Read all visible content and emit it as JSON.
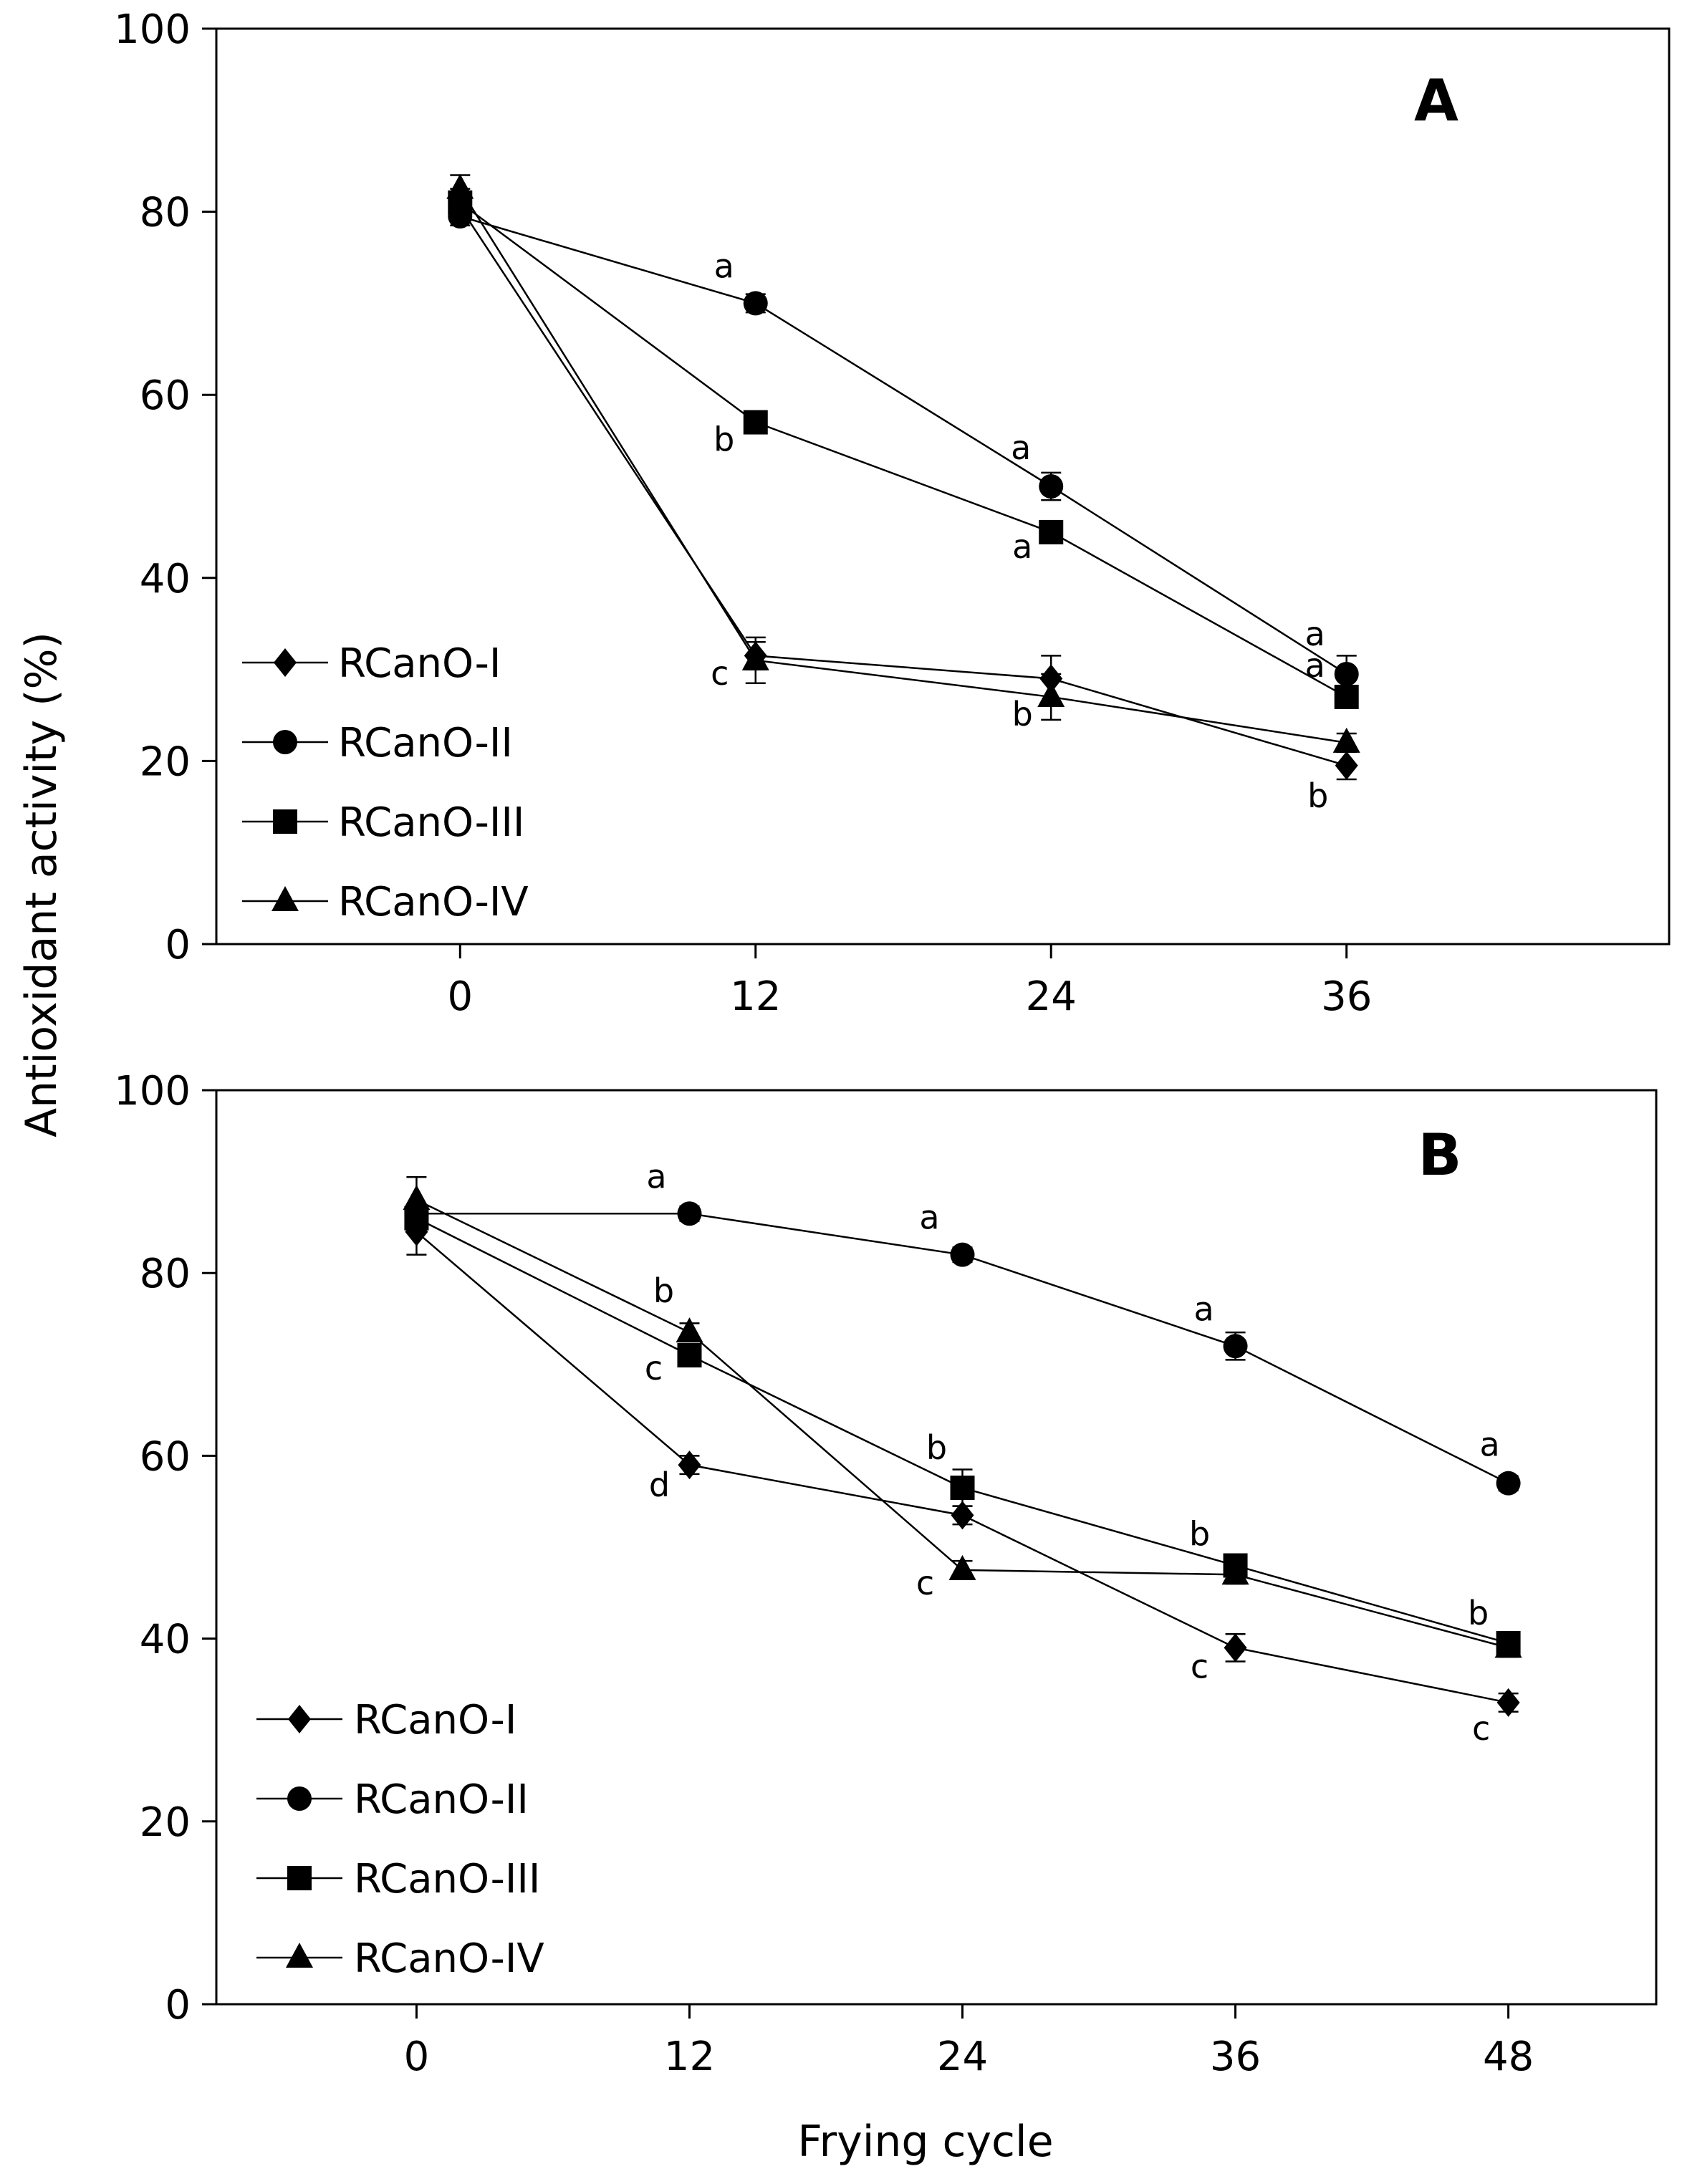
{
  "figure": {
    "ylabel": "Antioxidant activity (%)",
    "xlabel": "Frying cycle"
  },
  "chart_data": [
    {
      "type": "line",
      "panel": "A",
      "x": [
        0,
        12,
        24,
        36
      ],
      "xticks": [
        "0",
        "12",
        "24",
        "36"
      ],
      "ylim": [
        0,
        100
      ],
      "yticks": [
        "0",
        "20",
        "40",
        "60",
        "80",
        "100"
      ],
      "legend_position": "bottom-left",
      "series": [
        {
          "name": "RCanO-I",
          "marker": "diamond",
          "values": [
            80.5,
            31.5,
            29.0,
            19.5
          ],
          "errors": [
            1.5,
            1.5,
            2.5,
            1.5
          ],
          "letters": [
            "",
            "",
            "",
            "b"
          ]
        },
        {
          "name": "RCanO-II",
          "marker": "circle",
          "values": [
            79.5,
            70.0,
            50.0,
            29.5
          ],
          "errors": [
            1.0,
            1.0,
            1.5,
            2.0
          ],
          "letters": [
            "",
            "a",
            "a",
            "a"
          ]
        },
        {
          "name": "RCanO-III",
          "marker": "square",
          "values": [
            81.0,
            57.0,
            45.0,
            27.0
          ],
          "errors": [
            1.5,
            1.0,
            1.0,
            1.0
          ],
          "letters": [
            "",
            "b",
            "a",
            "a"
          ]
        },
        {
          "name": "RCanO-IV",
          "marker": "triangle",
          "values": [
            82.5,
            31.0,
            27.0,
            22.0
          ],
          "errors": [
            1.5,
            2.5,
            2.5,
            1.0
          ],
          "letters": [
            "",
            "c",
            "b",
            ""
          ]
        }
      ]
    },
    {
      "type": "line",
      "panel": "B",
      "x": [
        0,
        12,
        24,
        36,
        48
      ],
      "xticks": [
        "0",
        "12",
        "24",
        "36",
        "48"
      ],
      "ylim": [
        0,
        100
      ],
      "yticks": [
        "0",
        "20",
        "40",
        "60",
        "80",
        "100"
      ],
      "legend_position": "bottom-left",
      "series": [
        {
          "name": "RCanO-I",
          "marker": "diamond",
          "values": [
            84.5,
            59.0,
            53.5,
            39.0,
            33.0
          ],
          "errors": [
            2.5,
            1.0,
            1.0,
            1.5,
            1.0
          ],
          "letters": [
            "",
            "d",
            "",
            "c",
            "c"
          ]
        },
        {
          "name": "RCanO-II",
          "marker": "circle",
          "values": [
            86.5,
            86.5,
            82.0,
            72.0,
            57.0
          ],
          "errors": [
            1.0,
            0.8,
            0.8,
            1.5,
            0.8
          ],
          "letters": [
            "",
            "a",
            "a",
            "a",
            "a"
          ]
        },
        {
          "name": "RCanO-III",
          "marker": "square",
          "values": [
            86.0,
            71.0,
            56.5,
            48.0,
            39.5
          ],
          "errors": [
            1.5,
            1.0,
            2.0,
            1.0,
            1.0
          ],
          "letters": [
            "",
            "c",
            "b",
            "b",
            "b"
          ]
        },
        {
          "name": "RCanO-IV",
          "marker": "triangle",
          "values": [
            88.0,
            73.5,
            47.5,
            47.0,
            39.0
          ],
          "errors": [
            2.5,
            1.0,
            1.0,
            1.0,
            1.0
          ],
          "letters": [
            "",
            "b",
            "c",
            "",
            ""
          ]
        }
      ]
    }
  ]
}
